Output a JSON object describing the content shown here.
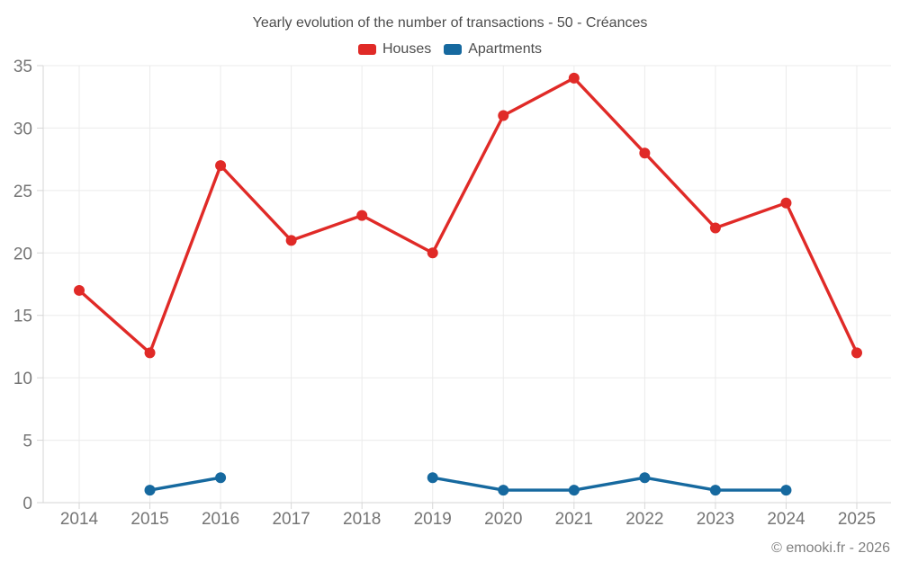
{
  "chart": {
    "title": "Yearly evolution of the number of transactions - 50 - Créances",
    "legend": [
      {
        "label": "Houses",
        "color": "#e02a27"
      },
      {
        "label": "Apartments",
        "color": "#16699f"
      }
    ]
  },
  "chart_data": {
    "type": "line",
    "title": "Yearly evolution of the number of transactions - 50 - Créances",
    "categories": [
      "2014",
      "2015",
      "2016",
      "2017",
      "2018",
      "2019",
      "2020",
      "2021",
      "2022",
      "2023",
      "2024",
      "2025"
    ],
    "series": [
      {
        "name": "Houses",
        "color": "#e02a27",
        "values": [
          17,
          12,
          27,
          21,
          23,
          20,
          31,
          34,
          28,
          22,
          24,
          12
        ]
      },
      {
        "name": "Apartments",
        "color": "#16699f",
        "values": [
          null,
          1,
          2,
          null,
          null,
          2,
          1,
          1,
          2,
          1,
          1,
          null
        ]
      }
    ],
    "xlabel": "",
    "ylabel": "",
    "ylim": [
      0,
      35
    ],
    "y_ticks": [
      0,
      5,
      10,
      15,
      20,
      25,
      30,
      35
    ],
    "grid": true,
    "legend_position": "top"
  },
  "footer": {
    "copyright": "© emooki.fr - 2026"
  }
}
